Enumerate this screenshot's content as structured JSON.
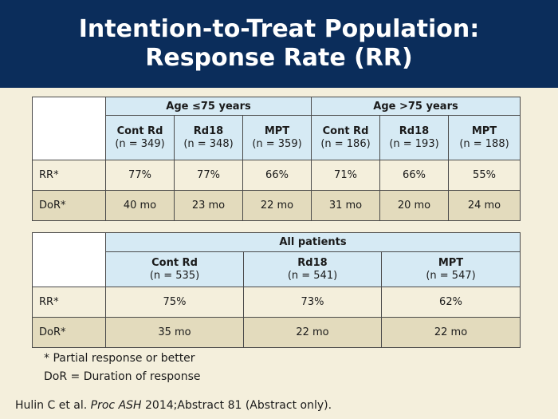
{
  "title": {
    "line1": "Intention-to-Treat Population:",
    "line2": "Response Rate (RR)"
  },
  "table1": {
    "groups": [
      "Age ≤75 years",
      "Age >75 years"
    ],
    "columns": [
      {
        "name": "Cont Rd",
        "n": "(n = 349)"
      },
      {
        "name": "Rd18",
        "n": "(n = 348)"
      },
      {
        "name": "MPT",
        "n": "(n = 359)"
      },
      {
        "name": "Cont Rd",
        "n": "(n = 186)"
      },
      {
        "name": "Rd18",
        "n": "(n = 193)"
      },
      {
        "name": "MPT",
        "n": "(n = 188)"
      }
    ],
    "rows": [
      {
        "label": "RR*",
        "values": [
          "77%",
          "77%",
          "66%",
          "71%",
          "66%",
          "55%"
        ]
      },
      {
        "label": "DoR*",
        "values": [
          "40 mo",
          "23 mo",
          "22 mo",
          "31 mo",
          "20 mo",
          "24 mo"
        ]
      }
    ]
  },
  "table2": {
    "group": "All patients",
    "columns": [
      {
        "name": "Cont Rd",
        "n": "(n = 535)"
      },
      {
        "name": "Rd18",
        "n": "(n = 541)"
      },
      {
        "name": "MPT",
        "n": "(n = 547)"
      }
    ],
    "rows": [
      {
        "label": "RR*",
        "values": [
          "75%",
          "73%",
          "62%"
        ]
      },
      {
        "label": "DoR*",
        "values": [
          "35 mo",
          "22 mo",
          "22 mo"
        ]
      }
    ]
  },
  "footnotes": {
    "partial": "* Partial response or better",
    "dor": "DoR = Duration of response"
  },
  "citation": {
    "authors": "Hulin C et al.",
    "journal": "Proc ASH",
    "rest": "2014;Abstract 81 (Abstract only)."
  },
  "colors": {
    "header_bg": "#0b2d5b",
    "table_head_bg": "#d6eaf4",
    "row_light": "#f4efdc",
    "row_dark": "#e3dbbd",
    "page_bg": "#f4efdc"
  }
}
